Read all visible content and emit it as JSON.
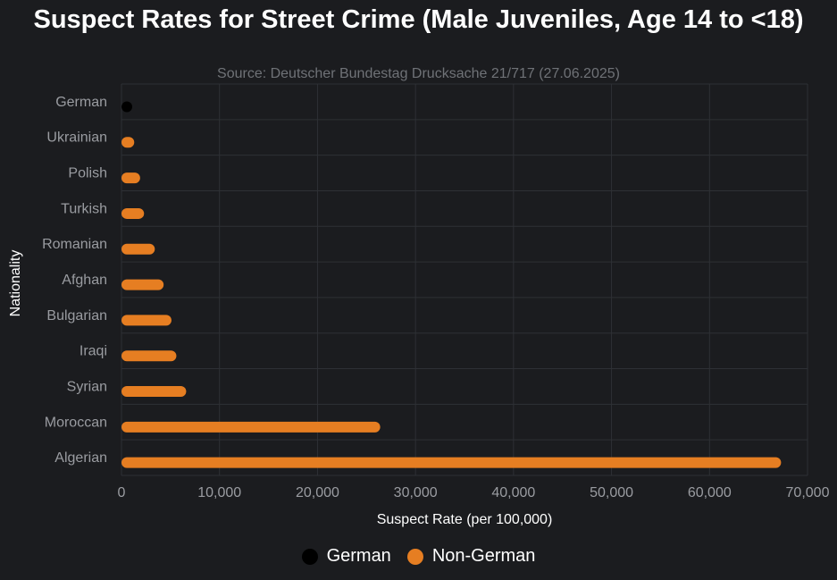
{
  "chart_data": {
    "type": "bar",
    "orientation": "horizontal",
    "title": "Suspect Rates for Street Crime (Male Juveniles, Age 14 to <18)",
    "subtitle": "Source: Deutscher Bundestag Drucksache 21/717 (27.06.2025)",
    "xlabel": "Suspect Rate (per 100,000)",
    "ylabel": "Nationality",
    "xlim": [
      0,
      70000
    ],
    "xticks": [
      0,
      10000,
      20000,
      30000,
      40000,
      50000,
      60000,
      70000
    ],
    "xtick_labels": [
      "0",
      "10,000",
      "20,000",
      "30,000",
      "40,000",
      "50,000",
      "60,000",
      "70,000"
    ],
    "grid": true,
    "legend_position": "bottom-center",
    "categories": [
      "German",
      "Ukrainian",
      "Polish",
      "Turkish",
      "Romanian",
      "Afghan",
      "Bulgarian",
      "Iraqi",
      "Syrian",
      "Moroccan",
      "Algerian"
    ],
    "values": [
      1000,
      1300,
      1900,
      2300,
      3400,
      4300,
      5100,
      5600,
      6600,
      26400,
      67300
    ],
    "groups": [
      "German",
      "Non-German",
      "Non-German",
      "Non-German",
      "Non-German",
      "Non-German",
      "Non-German",
      "Non-German",
      "Non-German",
      "Non-German",
      "Non-German"
    ],
    "legend": [
      {
        "name": "German",
        "color": "#000000"
      },
      {
        "name": "Non-German",
        "color": "#e67e22"
      }
    ]
  },
  "colors": {
    "background": "#1b1c1f",
    "grid": "#2e3035",
    "tick_text": "#9a9ca1",
    "bar_nongerman": "#e67e22",
    "bar_german": "#000000"
  }
}
